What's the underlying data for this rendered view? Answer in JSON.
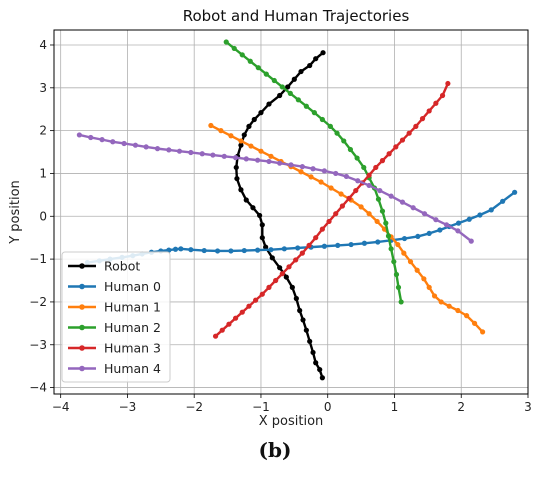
{
  "chart_data": {
    "type": "line",
    "title": "Robot and Human Trajectories",
    "xlabel": "X position",
    "ylabel": "Y position",
    "xlim": [
      -4.1,
      3.0
    ],
    "ylim": [
      -4.15,
      4.35
    ],
    "xticks": [
      -4,
      -3,
      -2,
      -1,
      0,
      1,
      2,
      3
    ],
    "yticks": [
      -4,
      -3,
      -2,
      -1,
      0,
      1,
      2,
      3,
      4
    ],
    "grid": true,
    "legend_position": "lower-left",
    "series": [
      {
        "name": "Robot",
        "color": "#000000",
        "points": [
          [
            -0.07,
            3.82
          ],
          [
            -0.18,
            3.68
          ],
          [
            -0.27,
            3.52
          ],
          [
            -0.4,
            3.38
          ],
          [
            -0.5,
            3.2
          ],
          [
            -0.6,
            3.02
          ],
          [
            -0.72,
            2.82
          ],
          [
            -0.88,
            2.62
          ],
          [
            -1.0,
            2.42
          ],
          [
            -1.1,
            2.26
          ],
          [
            -1.18,
            2.1
          ],
          [
            -1.25,
            1.9
          ],
          [
            -1.3,
            1.66
          ],
          [
            -1.35,
            1.4
          ],
          [
            -1.37,
            1.14
          ],
          [
            -1.36,
            0.88
          ],
          [
            -1.3,
            0.62
          ],
          [
            -1.22,
            0.38
          ],
          [
            -1.12,
            0.2
          ],
          [
            -1.02,
            0.02
          ],
          [
            -0.98,
            -0.2
          ],
          [
            -0.98,
            -0.5
          ],
          [
            -0.93,
            -0.72
          ],
          [
            -0.83,
            -0.97
          ],
          [
            -0.72,
            -1.2
          ],
          [
            -0.62,
            -1.42
          ],
          [
            -0.53,
            -1.66
          ],
          [
            -0.47,
            -1.92
          ],
          [
            -0.42,
            -2.2
          ],
          [
            -0.37,
            -2.42
          ],
          [
            -0.32,
            -2.66
          ],
          [
            -0.27,
            -2.92
          ],
          [
            -0.22,
            -3.18
          ],
          [
            -0.18,
            -3.42
          ],
          [
            -0.12,
            -3.58
          ],
          [
            -0.08,
            -3.77
          ]
        ]
      },
      {
        "name": "Human 0",
        "color": "#1f77b4",
        "points": [
          [
            -3.6,
            -1.08
          ],
          [
            -3.42,
            -1.04
          ],
          [
            -3.26,
            -1.0
          ],
          [
            -3.08,
            -0.96
          ],
          [
            -2.92,
            -0.92
          ],
          [
            -2.78,
            -0.88
          ],
          [
            -2.64,
            -0.84
          ],
          [
            -2.5,
            -0.81
          ],
          [
            -2.38,
            -0.79
          ],
          [
            -2.28,
            -0.77
          ],
          [
            -2.2,
            -0.76
          ],
          [
            -2.05,
            -0.78
          ],
          [
            -1.85,
            -0.8
          ],
          [
            -1.65,
            -0.81
          ],
          [
            -1.45,
            -0.81
          ],
          [
            -1.25,
            -0.8
          ],
          [
            -1.05,
            -0.79
          ],
          [
            -0.85,
            -0.78
          ],
          [
            -0.65,
            -0.76
          ],
          [
            -0.45,
            -0.74
          ],
          [
            -0.25,
            -0.72
          ],
          [
            -0.05,
            -0.7
          ],
          [
            0.15,
            -0.68
          ],
          [
            0.35,
            -0.66
          ],
          [
            0.55,
            -0.63
          ],
          [
            0.75,
            -0.6
          ],
          [
            0.95,
            -0.56
          ],
          [
            1.15,
            -0.52
          ],
          [
            1.35,
            -0.47
          ],
          [
            1.52,
            -0.4
          ],
          [
            1.68,
            -0.32
          ],
          [
            1.82,
            -0.24
          ],
          [
            1.96,
            -0.16
          ],
          [
            2.12,
            -0.07
          ],
          [
            2.28,
            0.03
          ],
          [
            2.45,
            0.15
          ],
          [
            2.62,
            0.35
          ],
          [
            2.8,
            0.56
          ]
        ]
      },
      {
        "name": "Human 1",
        "color": "#ff7f0e",
        "points": [
          [
            -1.75,
            2.12
          ],
          [
            -1.6,
            2.0
          ],
          [
            -1.45,
            1.88
          ],
          [
            -1.3,
            1.76
          ],
          [
            -1.15,
            1.64
          ],
          [
            -1.0,
            1.52
          ],
          [
            -0.85,
            1.4
          ],
          [
            -0.7,
            1.28
          ],
          [
            -0.55,
            1.16
          ],
          [
            -0.4,
            1.04
          ],
          [
            -0.25,
            0.92
          ],
          [
            -0.1,
            0.8
          ],
          [
            0.05,
            0.66
          ],
          [
            0.2,
            0.52
          ],
          [
            0.35,
            0.38
          ],
          [
            0.5,
            0.22
          ],
          [
            0.62,
            0.06
          ],
          [
            0.74,
            -0.12
          ],
          [
            0.85,
            -0.3
          ],
          [
            0.95,
            -0.48
          ],
          [
            1.05,
            -0.66
          ],
          [
            1.14,
            -0.86
          ],
          [
            1.24,
            -1.06
          ],
          [
            1.34,
            -1.26
          ],
          [
            1.44,
            -1.46
          ],
          [
            1.52,
            -1.66
          ],
          [
            1.6,
            -1.86
          ],
          [
            1.7,
            -2.0
          ],
          [
            1.82,
            -2.1
          ],
          [
            1.95,
            -2.2
          ],
          [
            2.08,
            -2.32
          ],
          [
            2.2,
            -2.5
          ],
          [
            2.32,
            -2.7
          ]
        ]
      },
      {
        "name": "Human 2",
        "color": "#2ca02c",
        "points": [
          [
            -1.52,
            4.07
          ],
          [
            -1.4,
            3.92
          ],
          [
            -1.28,
            3.77
          ],
          [
            -1.16,
            3.62
          ],
          [
            -1.04,
            3.47
          ],
          [
            -0.92,
            3.32
          ],
          [
            -0.8,
            3.17
          ],
          [
            -0.68,
            3.02
          ],
          [
            -0.56,
            2.87
          ],
          [
            -0.44,
            2.72
          ],
          [
            -0.32,
            2.57
          ],
          [
            -0.2,
            2.42
          ],
          [
            -0.08,
            2.26
          ],
          [
            0.04,
            2.1
          ],
          [
            0.14,
            1.94
          ],
          [
            0.24,
            1.76
          ],
          [
            0.34,
            1.56
          ],
          [
            0.44,
            1.36
          ],
          [
            0.54,
            1.14
          ],
          [
            0.62,
            0.9
          ],
          [
            0.7,
            0.66
          ],
          [
            0.76,
            0.4
          ],
          [
            0.82,
            0.12
          ],
          [
            0.87,
            -0.16
          ],
          [
            0.91,
            -0.46
          ],
          [
            0.95,
            -0.76
          ],
          [
            0.99,
            -1.06
          ],
          [
            1.03,
            -1.36
          ],
          [
            1.06,
            -1.66
          ],
          [
            1.1,
            -2.0
          ]
        ]
      },
      {
        "name": "Human 3",
        "color": "#d62728",
        "points": [
          [
            -1.68,
            -2.8
          ],
          [
            -1.58,
            -2.66
          ],
          [
            -1.48,
            -2.52
          ],
          [
            -1.38,
            -2.38
          ],
          [
            -1.28,
            -2.24
          ],
          [
            -1.18,
            -2.1
          ],
          [
            -1.08,
            -1.96
          ],
          [
            -0.98,
            -1.82
          ],
          [
            -0.88,
            -1.66
          ],
          [
            -0.78,
            -1.5
          ],
          [
            -0.68,
            -1.34
          ],
          [
            -0.58,
            -1.18
          ],
          [
            -0.48,
            -1.02
          ],
          [
            -0.38,
            -0.86
          ],
          [
            -0.28,
            -0.68
          ],
          [
            -0.18,
            -0.5
          ],
          [
            -0.08,
            -0.3
          ],
          [
            0.02,
            -0.12
          ],
          [
            0.12,
            0.06
          ],
          [
            0.22,
            0.24
          ],
          [
            0.32,
            0.42
          ],
          [
            0.42,
            0.6
          ],
          [
            0.52,
            0.78
          ],
          [
            0.62,
            0.96
          ],
          [
            0.72,
            1.14
          ],
          [
            0.82,
            1.3
          ],
          [
            0.92,
            1.46
          ],
          [
            1.02,
            1.62
          ],
          [
            1.12,
            1.78
          ],
          [
            1.22,
            1.94
          ],
          [
            1.32,
            2.1
          ],
          [
            1.42,
            2.28
          ],
          [
            1.52,
            2.46
          ],
          [
            1.62,
            2.64
          ],
          [
            1.72,
            2.82
          ],
          [
            1.8,
            3.1
          ]
        ]
      },
      {
        "name": "Human 4",
        "color": "#9467bd",
        "points": [
          [
            -3.72,
            1.9
          ],
          [
            -3.55,
            1.84
          ],
          [
            -3.38,
            1.79
          ],
          [
            -3.22,
            1.74
          ],
          [
            -3.05,
            1.7
          ],
          [
            -2.88,
            1.66
          ],
          [
            -2.72,
            1.62
          ],
          [
            -2.55,
            1.58
          ],
          [
            -2.38,
            1.55
          ],
          [
            -2.22,
            1.52
          ],
          [
            -2.05,
            1.49
          ],
          [
            -1.88,
            1.46
          ],
          [
            -1.72,
            1.43
          ],
          [
            -1.55,
            1.4
          ],
          [
            -1.38,
            1.37
          ],
          [
            -1.22,
            1.34
          ],
          [
            -1.05,
            1.31
          ],
          [
            -0.88,
            1.28
          ],
          [
            -0.72,
            1.24
          ],
          [
            -0.55,
            1.2
          ],
          [
            -0.38,
            1.16
          ],
          [
            -0.22,
            1.11
          ],
          [
            -0.05,
            1.06
          ],
          [
            0.12,
            1.0
          ],
          [
            0.28,
            0.93
          ],
          [
            0.45,
            0.83
          ],
          [
            0.62,
            0.72
          ],
          [
            0.78,
            0.6
          ],
          [
            0.95,
            0.47
          ],
          [
            1.12,
            0.33
          ],
          [
            1.28,
            0.2
          ],
          [
            1.45,
            0.06
          ],
          [
            1.62,
            -0.08
          ],
          [
            1.78,
            -0.2
          ],
          [
            1.95,
            -0.34
          ],
          [
            2.15,
            -0.58
          ]
        ]
      }
    ]
  },
  "caption": "(b)"
}
